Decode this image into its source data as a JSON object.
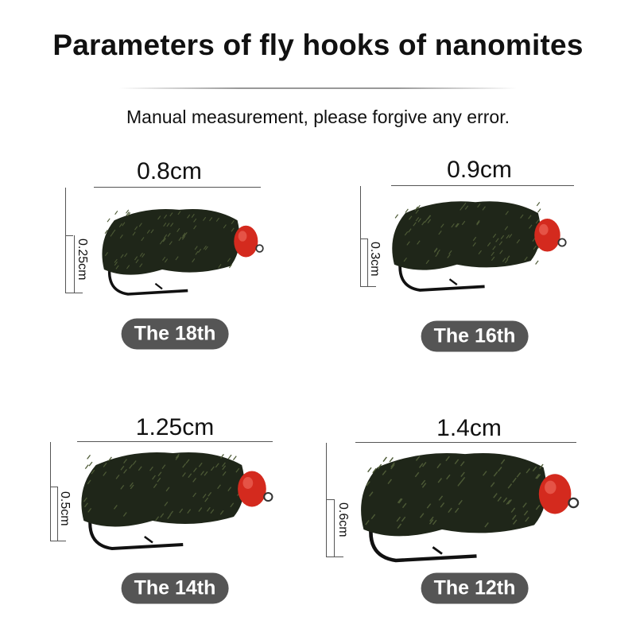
{
  "title": "Parameters of fly hooks of nanomites",
  "subtitle": "Manual measurement, please forgive any error.",
  "colors": {
    "body": "#1f2619",
    "bead": "#d42a1e",
    "badge": "#555555"
  },
  "hooks": [
    {
      "size_label": "The 18th",
      "length": "0.8cm",
      "height": "0.25cm"
    },
    {
      "size_label": "The 16th",
      "length": "0.9cm",
      "height": "0.3cm"
    },
    {
      "size_label": "The 14th",
      "length": "1.25cm",
      "height": "0.5cm"
    },
    {
      "size_label": "The 12th",
      "length": "1.4cm",
      "height": "0.6cm"
    }
  ]
}
